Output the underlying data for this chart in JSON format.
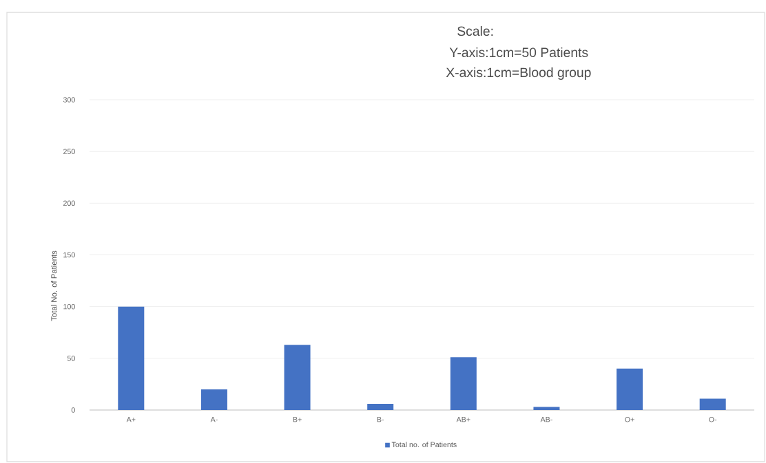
{
  "chart_data": {
    "type": "bar",
    "ylabel": "Total No. of Patients",
    "categories": [
      "A+",
      "A-",
      "B+",
      "B-",
      "AB+",
      "AB-",
      "O+",
      "O-"
    ],
    "series": [
      {
        "name": "Total no. of Patients",
        "color": "#4472c4",
        "values": [
          100,
          20,
          63,
          6,
          51,
          3,
          40,
          11
        ]
      }
    ],
    "ylim": [
      0,
      300
    ],
    "yticks": [
      0,
      50,
      100,
      150,
      200,
      250,
      300
    ],
    "grid": "y",
    "legend": "bottom",
    "annotations": [
      "Scale:",
      "Y-axis:1cm=50 Patients",
      "X-axis:1cm=Blood group"
    ]
  }
}
